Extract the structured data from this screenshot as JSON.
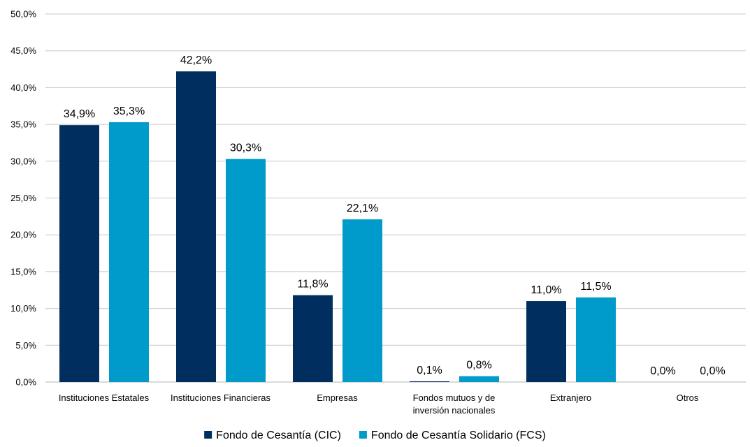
{
  "chart_data": {
    "type": "bar",
    "title": "",
    "xlabel": "",
    "ylabel": "",
    "ylim": [
      0,
      50
    ],
    "ytick_step": 5,
    "ytick_labels": [
      "0,0%",
      "5,0%",
      "10,0%",
      "15,0%",
      "20,0%",
      "25,0%",
      "30,0%",
      "35,0%",
      "40,0%",
      "45,0%",
      "50,0%"
    ],
    "grid": true,
    "legend_position": "bottom",
    "categories": [
      [
        "Instituciones Estatales"
      ],
      [
        "Instituciones Financieras"
      ],
      [
        "Empresas"
      ],
      [
        "Fondos mutuos y de",
        "inversión nacionales"
      ],
      [
        "Extranjero"
      ],
      [
        "Otros"
      ]
    ],
    "series": [
      {
        "name": "Fondo de Cesantía (CIC)",
        "color": "#002f5f",
        "values": [
          34.9,
          42.2,
          11.8,
          0.1,
          11.0,
          0.0
        ],
        "labels": [
          "34,9%",
          "42,2%",
          "11,8%",
          "0,1%",
          "11,0%",
          "0,0%"
        ]
      },
      {
        "name": "Fondo de Cesantía Solidario (FCS)",
        "color": "#009bcb",
        "values": [
          35.3,
          30.3,
          22.1,
          0.8,
          11.5,
          0.0
        ],
        "labels": [
          "35,3%",
          "30,3%",
          "22,1%",
          "0,8%",
          "11,5%",
          "0,0%"
        ]
      }
    ]
  }
}
